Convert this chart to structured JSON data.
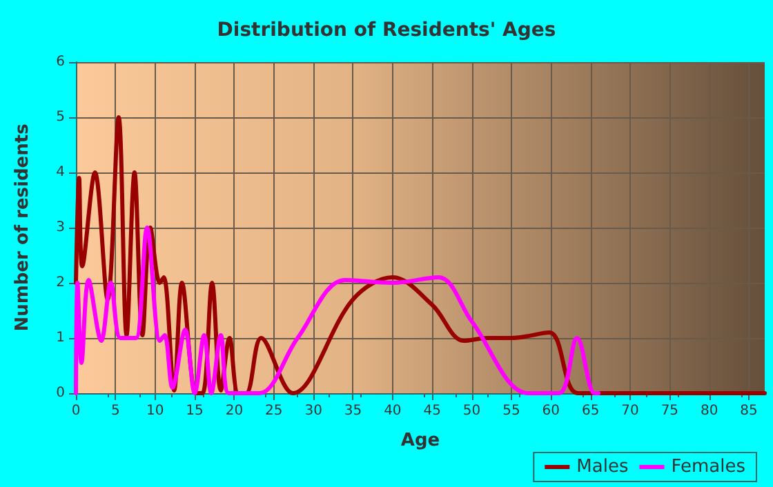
{
  "chart_data": {
    "type": "line",
    "title": "Distribution of Residents' Ages",
    "xlabel": "Age",
    "ylabel": "Number of residents",
    "xlim": [
      0,
      87
    ],
    "xticks": [
      0,
      5,
      10,
      15,
      20,
      25,
      30,
      35,
      40,
      45,
      50,
      55,
      60,
      65,
      70,
      75,
      80,
      85
    ],
    "ylim": [
      0,
      6
    ],
    "yticks": [
      0,
      1,
      2,
      3,
      4,
      5,
      6
    ],
    "grid": true,
    "legend": "bottom right",
    "marker": "none",
    "line_style": "solid",
    "series": [
      {
        "name": "Males",
        "color": "#990000",
        "x": [
          0,
          0.4,
          0.8,
          2.4,
          4,
          5.4,
          6.4,
          7.4,
          8.4,
          9.4,
          10.6,
          11.1,
          12.4,
          13.4,
          15.2,
          16,
          17.2,
          18.3,
          19.4,
          20.5,
          21.5,
          23.4,
          27.4,
          35,
          40,
          45,
          49,
          52,
          55,
          59.8,
          63.4,
          70,
          80,
          87
        ],
        "values": [
          2,
          3.9,
          2.3,
          4,
          1.7,
          5,
          1.05,
          4,
          1.05,
          3,
          2,
          2.1,
          0.05,
          2,
          0,
          0,
          2,
          0.05,
          1,
          0,
          0,
          1,
          0,
          1.7,
          2.1,
          1.6,
          0.95,
          1,
          1,
          1.1,
          0,
          0,
          0,
          0
        ]
      },
      {
        "name": "Females",
        "color": "#ff00ff",
        "x": [
          0,
          0.2,
          0.7,
          1.6,
          3.2,
          4.4,
          5.6,
          6.7,
          7.6,
          9,
          10.6,
          11.2,
          12.2,
          13.8,
          15,
          16.2,
          17.1,
          18.3,
          19.3,
          21,
          23.2,
          28,
          34,
          40,
          45.8,
          50,
          57.1,
          61,
          63.3,
          65.5,
          66
        ],
        "values": [
          0,
          2,
          0.55,
          2.05,
          0.95,
          2,
          1,
          1,
          1,
          3,
          0.95,
          1.05,
          0.1,
          1.15,
          0,
          1.05,
          0,
          1.05,
          0,
          0,
          0,
          1,
          2.05,
          2,
          2.1,
          1.3,
          0,
          0,
          1,
          0,
          0
        ]
      }
    ]
  }
}
